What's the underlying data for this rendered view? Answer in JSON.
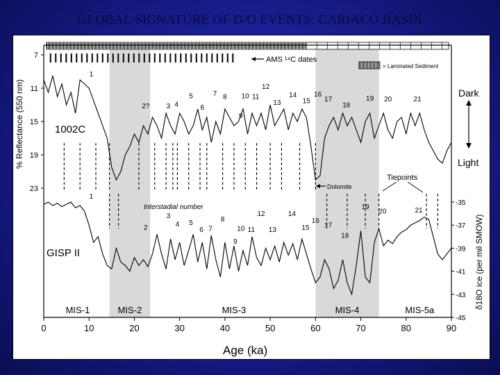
{
  "slide": {
    "title": "GLOBAL SIGNATURE OF D/O EVENTS: CARIACO BASIN",
    "background_color": "#1a1f96"
  },
  "chart_data": {
    "type": "line",
    "xlabel": "Age (ka)",
    "xlim": [
      0,
      90
    ],
    "x_ticks": [
      0,
      10,
      20,
      30,
      40,
      50,
      60,
      70,
      80,
      90
    ],
    "panels": [
      {
        "name": "1002C",
        "ylabel": "% Reflectance (550 nm)",
        "ylim": [
          7,
          23
        ],
        "y_ticks": [
          7,
          11,
          15,
          19,
          23
        ],
        "y_axis_side": "left",
        "y_inverted": true,
        "right_labels": {
          "top": "Dark",
          "bottom": "Light"
        }
      },
      {
        "name": "GISP II",
        "ylabel": "δ18O ice (per mil SMOW)",
        "ylim": [
          -45,
          -35
        ],
        "y_ticks": [
          -35,
          -37,
          -39,
          -41,
          -43,
          -45
        ],
        "y_axis_side": "right"
      }
    ],
    "shaded_intervals": [
      [
        14.5,
        23.5
      ],
      [
        60,
        74
      ]
    ],
    "reflectance_series": {
      "name": "1002C",
      "x": [
        0,
        1,
        2,
        3,
        4,
        5,
        6,
        7,
        8,
        9,
        10,
        11,
        12,
        13,
        14,
        15,
        16,
        17,
        18,
        19,
        20,
        21,
        22,
        23,
        24,
        25,
        26,
        27,
        28,
        29,
        30,
        31,
        32,
        33,
        34,
        35,
        36,
        37,
        38,
        39,
        40,
        41,
        42,
        43,
        44,
        45,
        46,
        47,
        48,
        49,
        50,
        51,
        52,
        53,
        54,
        55,
        56,
        57,
        58,
        59,
        60,
        61,
        62,
        63,
        64,
        65,
        66,
        67,
        68,
        69,
        70,
        71,
        72,
        73,
        74,
        75,
        76,
        77,
        78,
        79,
        80,
        81,
        82,
        83,
        84,
        85,
        86,
        87,
        88,
        89,
        90
      ],
      "y": [
        10.0,
        11.5,
        9.5,
        12.0,
        10.5,
        13.0,
        11.5,
        14.0,
        10.0,
        10.5,
        11.0,
        12.5,
        14.0,
        15.5,
        17.0,
        20.5,
        22.0,
        21.0,
        19.0,
        18.0,
        16.5,
        17.5,
        15.5,
        16.5,
        14.5,
        15.5,
        17.0,
        14.0,
        15.5,
        16.5,
        14.0,
        15.0,
        16.5,
        15.5,
        13.5,
        16.0,
        14.5,
        17.5,
        15.0,
        16.5,
        13.5,
        14.5,
        15.5,
        15.0,
        13.5,
        16.5,
        14.0,
        15.5,
        14.0,
        16.0,
        13.0,
        15.5,
        14.5,
        13.5,
        16.0,
        14.0,
        15.0,
        13.5,
        14.5,
        18.0,
        22.0,
        21.5,
        17.0,
        15.5,
        14.5,
        16.0,
        14.0,
        15.5,
        14.5,
        16.0,
        17.5,
        15.0,
        14.0,
        17.0,
        15.5,
        14.0,
        16.0,
        17.0,
        15.0,
        14.5,
        16.5,
        14.0,
        15.5,
        14.0,
        16.0,
        17.5,
        18.5,
        19.5,
        20.0,
        18.5,
        17.5
      ]
    },
    "isotope_series": {
      "name": "GISP II",
      "x": [
        0,
        1,
        2,
        3,
        4,
        5,
        6,
        7,
        8,
        9,
        10,
        11,
        12,
        13,
        14,
        15,
        16,
        17,
        18,
        19,
        20,
        21,
        22,
        23,
        24,
        25,
        26,
        27,
        28,
        29,
        30,
        31,
        32,
        33,
        34,
        35,
        36,
        37,
        38,
        39,
        40,
        41,
        42,
        43,
        44,
        45,
        46,
        47,
        48,
        49,
        50,
        51,
        52,
        53,
        54,
        55,
        56,
        57,
        58,
        59,
        60,
        61,
        62,
        63,
        64,
        65,
        66,
        67,
        68,
        69,
        70,
        71,
        72,
        73,
        74,
        75,
        76,
        77,
        78,
        79,
        80,
        81,
        82,
        83,
        84,
        85,
        86,
        87,
        88,
        89,
        90
      ],
      "y": [
        -35.2,
        -35.0,
        -35.3,
        -35.1,
        -35.4,
        -35.2,
        -35.0,
        -35.5,
        -35.3,
        -35.8,
        -37.0,
        -38.5,
        -38.0,
        -39.5,
        -40.5,
        -40.8,
        -39.0,
        -40.2,
        -40.5,
        -41.0,
        -39.8,
        -40.5,
        -40.0,
        -40.6,
        -39.5,
        -37.8,
        -39.5,
        -40.8,
        -38.2,
        -40.0,
        -38.5,
        -40.5,
        -39.2,
        -37.8,
        -40.2,
        -38.5,
        -40.8,
        -37.9,
        -40.0,
        -41.5,
        -38.5,
        -40.8,
        -38.8,
        -41.0,
        -39.2,
        -40.5,
        -38.0,
        -39.8,
        -40.5,
        -39.0,
        -40.0,
        -38.8,
        -40.2,
        -38.5,
        -39.6,
        -38.6,
        -40.0,
        -38.2,
        -39.5,
        -40.8,
        -42.0,
        -41.5,
        -40.0,
        -40.8,
        -42.5,
        -41.8,
        -40.0,
        -42.0,
        -43.0,
        -40.5,
        -37.5,
        -41.5,
        -42.0,
        -38.5,
        -37.3,
        -38.8,
        -38.3,
        -38.6,
        -38.0,
        -37.6,
        -37.4,
        -37.0,
        -36.8,
        -36.6,
        -36.3,
        -36.5,
        -38.0,
        -39.5,
        -40.0,
        -39.5,
        -39.0
      ]
    },
    "annotations": {
      "ams_label": "AMS ¹⁴C dates",
      "laminated_label": "= Laminated Sediment",
      "interstadial_label": "Interstadial number",
      "dolomite_label": "Dolomite",
      "tiepoints_label": "Tiepoints",
      "reflectance_event_labels": [
        {
          "label": "1",
          "x": 10.5,
          "y": 9.6
        },
        {
          "label": "2?",
          "x": 22.5,
          "y": 13.4
        },
        {
          "label": "3",
          "x": 27.5,
          "y": 13.4
        },
        {
          "label": "4",
          "x": 29.3,
          "y": 13.2
        },
        {
          "label": "5",
          "x": 32.5,
          "y": 12.2
        },
        {
          "label": "6",
          "x": 35.0,
          "y": 13.6
        },
        {
          "label": "7",
          "x": 37.8,
          "y": 11.9
        },
        {
          "label": "8",
          "x": 40.0,
          "y": 12.3
        },
        {
          "label": "9",
          "x": 43.5,
          "y": 14.6
        },
        {
          "label": "10",
          "x": 44.5,
          "y": 12.2
        },
        {
          "label": "11",
          "x": 46.8,
          "y": 12.3
        },
        {
          "label": "12",
          "x": 49.0,
          "y": 11.1
        },
        {
          "label": "13",
          "x": 51.5,
          "y": 13.0
        },
        {
          "label": "14",
          "x": 55.0,
          "y": 12.1
        },
        {
          "label": "15",
          "x": 58.0,
          "y": 12.8
        },
        {
          "label": "16",
          "x": 60.5,
          "y": 12.0
        },
        {
          "label": "17",
          "x": 62.8,
          "y": 12.6
        },
        {
          "label": "18",
          "x": 66.8,
          "y": 13.3
        },
        {
          "label": "19",
          "x": 72.0,
          "y": 12.5
        },
        {
          "label": "20",
          "x": 76.0,
          "y": 12.6
        },
        {
          "label": "21",
          "x": 82.5,
          "y": 12.6
        }
      ],
      "isotope_event_labels": [
        {
          "label": "1",
          "x": 10.5,
          "y": -34.7
        },
        {
          "label": "2",
          "x": 22.5,
          "y": -37.4
        },
        {
          "label": "3",
          "x": 27.5,
          "y": -36.4
        },
        {
          "label": "4",
          "x": 29.5,
          "y": -37.1
        },
        {
          "label": "5",
          "x": 32.5,
          "y": -37.0
        },
        {
          "label": "6",
          "x": 34.8,
          "y": -37.6
        },
        {
          "label": "7",
          "x": 36.8,
          "y": -37.5
        },
        {
          "label": "8",
          "x": 39.5,
          "y": -36.7
        },
        {
          "label": "9",
          "x": 42.3,
          "y": -38.6
        },
        {
          "label": "10",
          "x": 43.5,
          "y": -37.5
        },
        {
          "label": "11",
          "x": 45.8,
          "y": -37.6
        },
        {
          "label": "12",
          "x": 48.0,
          "y": -36.2
        },
        {
          "label": "13",
          "x": 50.5,
          "y": -37.6
        },
        {
          "label": "14",
          "x": 54.8,
          "y": -36.2
        },
        {
          "label": "15",
          "x": 57.8,
          "y": -37.4
        },
        {
          "label": "16",
          "x": 60.0,
          "y": -36.8
        },
        {
          "label": "17",
          "x": 62.8,
          "y": -37.2
        },
        {
          "label": "18",
          "x": 66.5,
          "y": -38.1
        },
        {
          "label": "19",
          "x": 71.0,
          "y": -35.6
        },
        {
          "label": "20",
          "x": 74.8,
          "y": -36.0
        },
        {
          "label": "21",
          "x": 82.8,
          "y": -35.9
        }
      ],
      "mis_labels": [
        {
          "label": "MIS-1",
          "x": 7.5
        },
        {
          "label": "MIS-2",
          "x": 19.0
        },
        {
          "label": "MIS-3",
          "x": 42.0
        },
        {
          "label": "MIS-4",
          "x": 67.0
        },
        {
          "label": "MIS-5a",
          "x": 83.0
        }
      ]
    }
  }
}
